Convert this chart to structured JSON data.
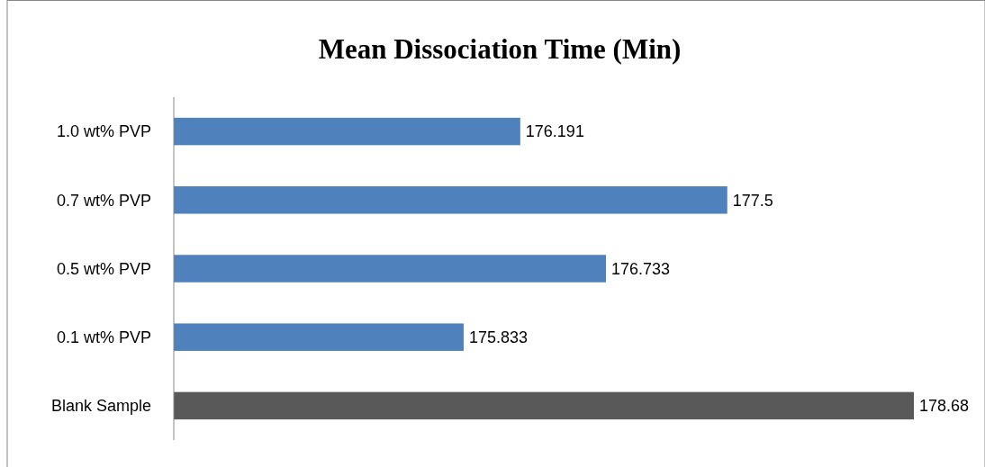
{
  "chart_data": {
    "type": "bar",
    "orientation": "horizontal",
    "title": "Mean Dissociation Time (Min)",
    "categories": [
      "1.0 wt% PVP",
      "0.7 wt% PVP",
      "0.5 wt% PVP",
      "0.1 wt% PVP",
      "Blank Sample"
    ],
    "values": [
      176.191,
      177.5,
      176.733,
      175.833,
      178.68
    ],
    "colors": [
      "#4f81bd",
      "#4f81bd",
      "#4f81bd",
      "#4f81bd",
      "#595959"
    ],
    "xlim": [
      174,
      178.68
    ],
    "tick_labels": "y",
    "data_labels": true
  }
}
